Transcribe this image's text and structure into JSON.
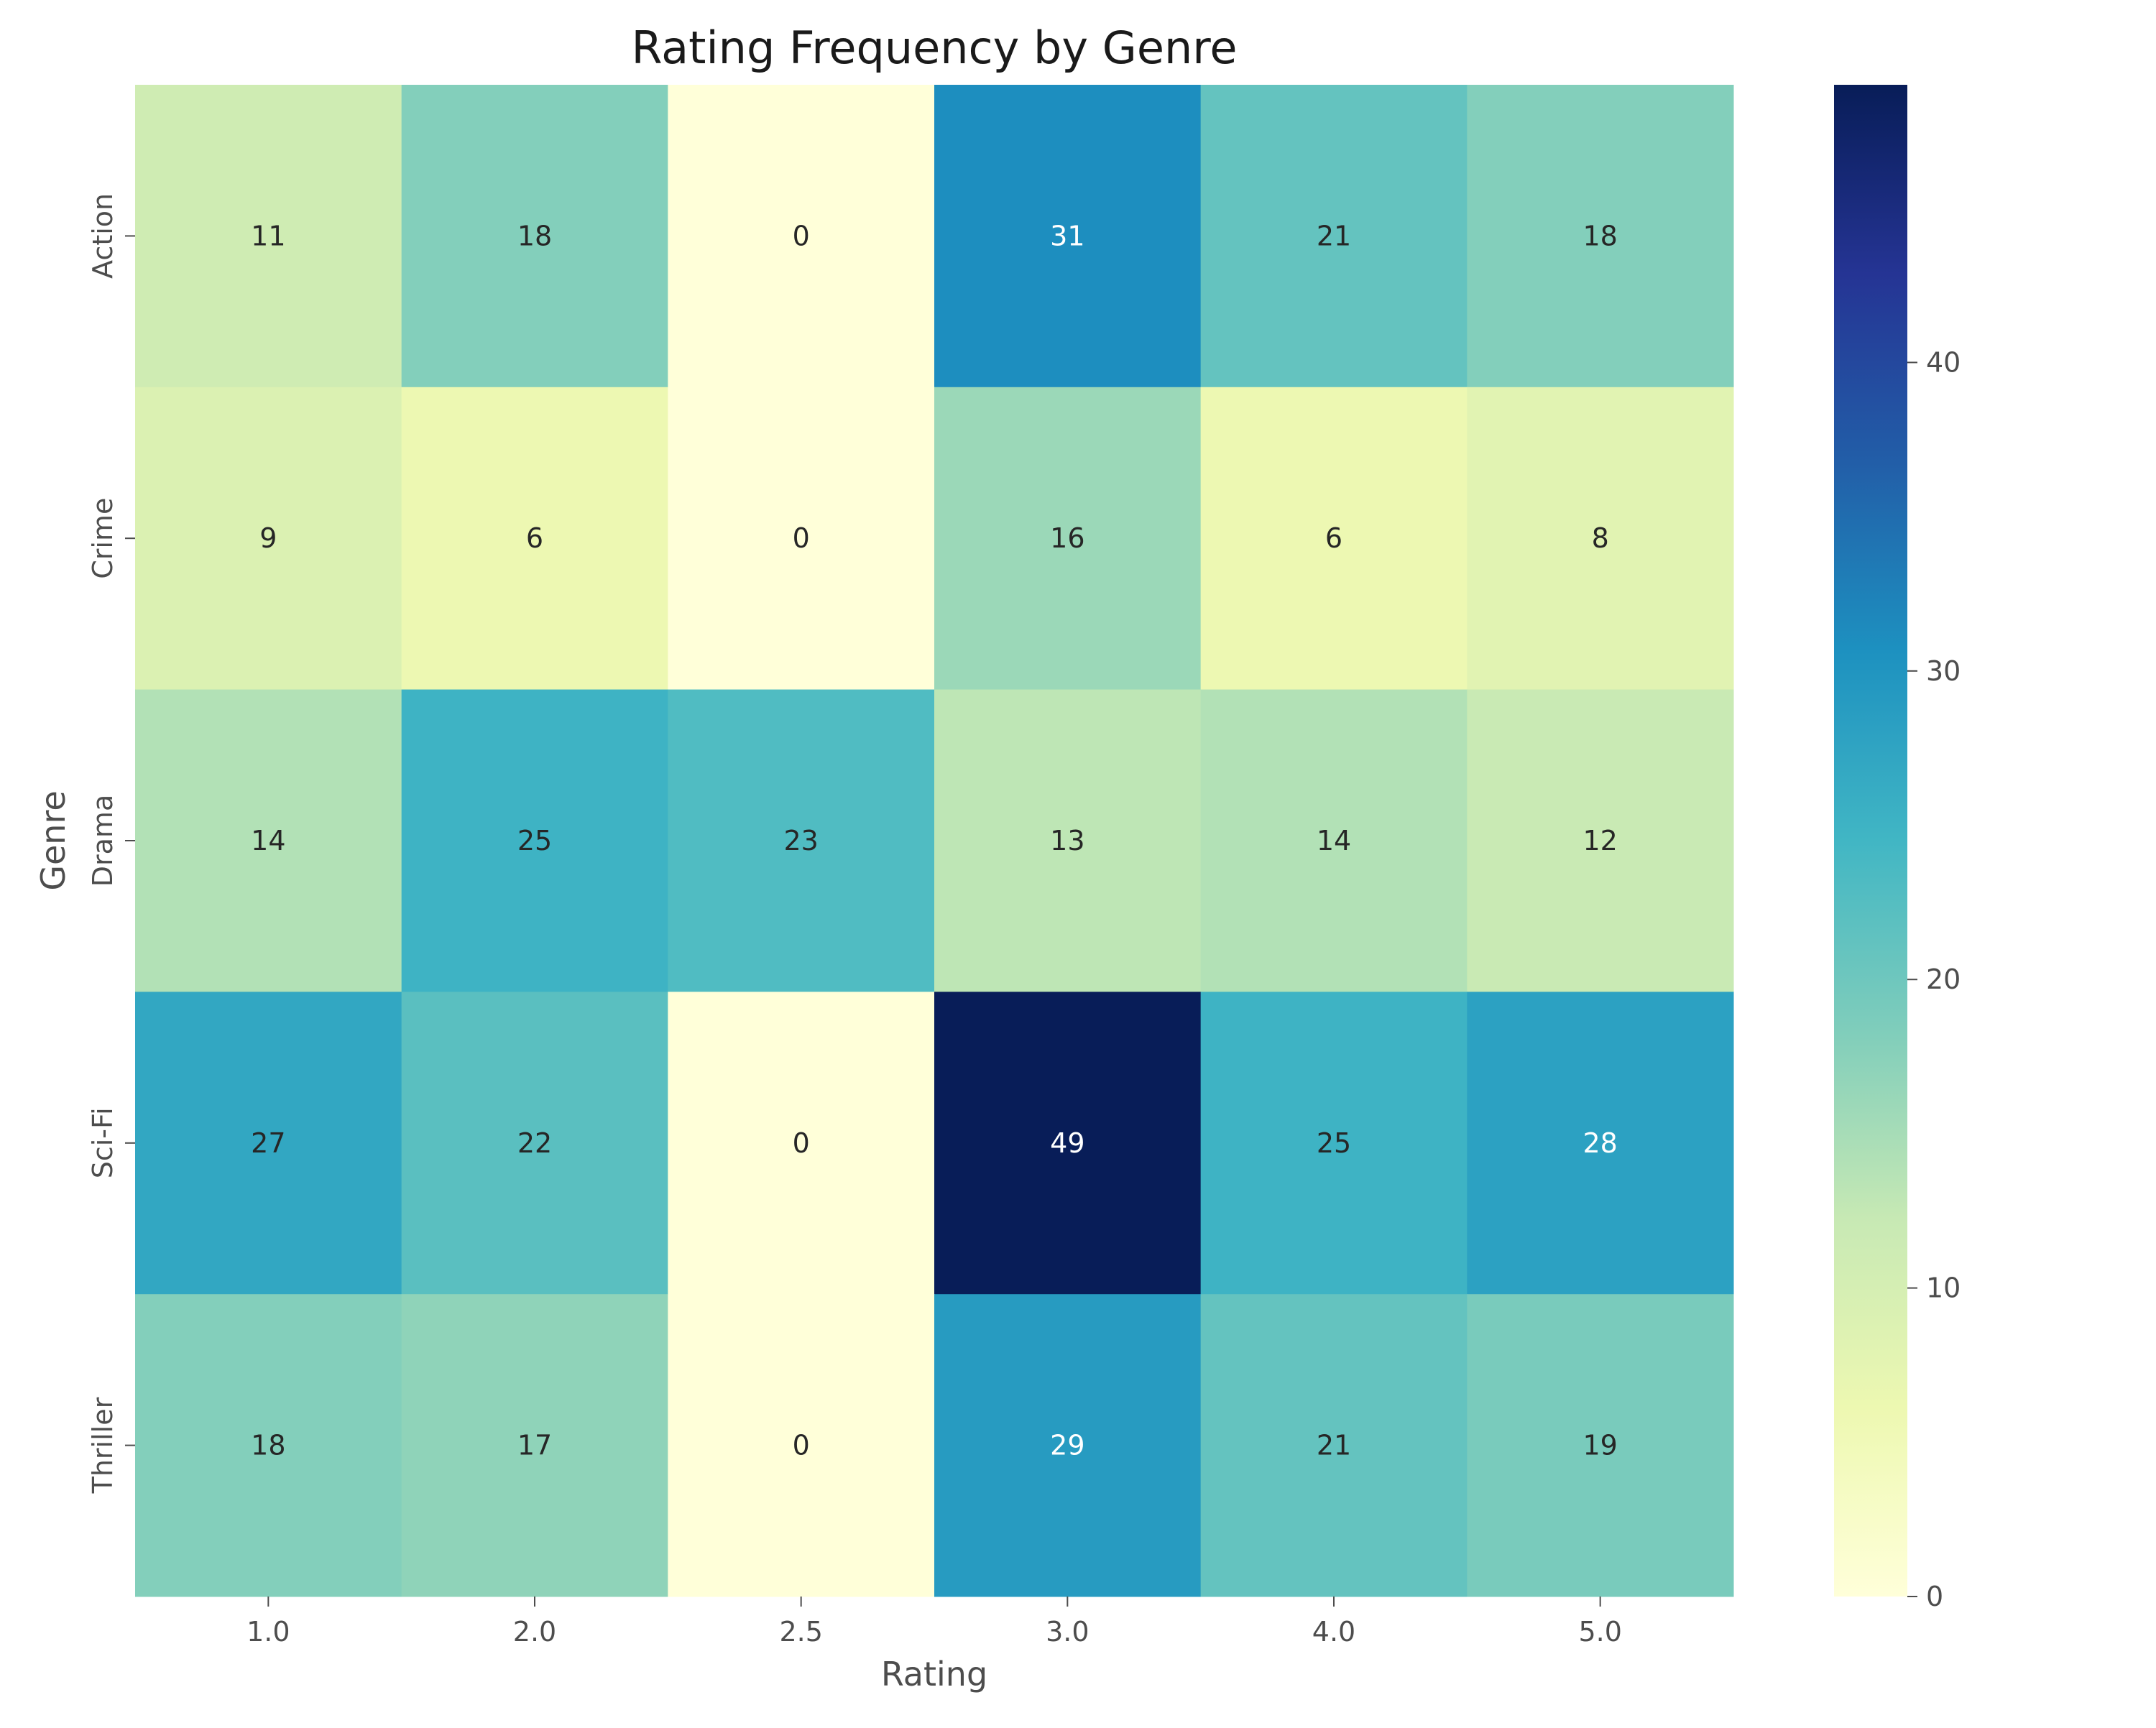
{
  "chart_data": {
    "type": "heatmap",
    "title": "Rating Frequency by Genre",
    "xlabel": "Rating",
    "ylabel": "Genre",
    "x_categories": [
      "1.0",
      "2.0",
      "2.5",
      "3.0",
      "4.0",
      "5.0"
    ],
    "y_categories": [
      "Action",
      "Crime",
      "Drama",
      "Sci-Fi",
      "Thriller"
    ],
    "values": [
      [
        11,
        18,
        0,
        31,
        21,
        18
      ],
      [
        9,
        6,
        0,
        16,
        6,
        8
      ],
      [
        14,
        25,
        23,
        13,
        14,
        12
      ],
      [
        27,
        22,
        0,
        49,
        25,
        28
      ],
      [
        18,
        17,
        0,
        29,
        21,
        19
      ]
    ],
    "colorbar": {
      "min": 0,
      "max": 49,
      "ticks": [
        0,
        10,
        20,
        30,
        40
      ],
      "colormap": "YlGnBu"
    }
  }
}
